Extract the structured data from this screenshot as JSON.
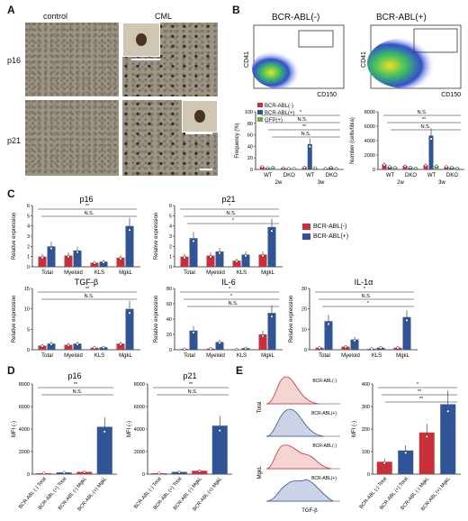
{
  "panels": {
    "A": "A",
    "B": "B",
    "C": "C",
    "D": "D",
    "E": "E"
  },
  "panelA": {
    "col_control": "control",
    "col_cml": "CML",
    "row_p16": "p16",
    "row_p21": "p21"
  },
  "panelB": {
    "flow_left_title": "BCR-ABL(-)",
    "flow_right_title": "BCR-ABL(+)",
    "cd41": "CD41",
    "cd150": "CD150",
    "legend": [
      "BCR-ABL(-)",
      "BCR-ABL(+)",
      "GFP(+)"
    ],
    "colors": {
      "neg": "#c8303a",
      "pos": "#2f5597",
      "gfp": "#6aaa3a"
    }
  },
  "chart_data": [
    {
      "type": "bar",
      "panel": "B-frequency",
      "ylabel": "Frequency (%)",
      "ylim": [
        0,
        100
      ],
      "yticks": [
        0,
        20,
        40,
        60,
        80,
        100
      ],
      "categories": [
        "WT",
        "DKO",
        "WT",
        "DKO"
      ],
      "groups": [
        "2w",
        "3w"
      ],
      "series": [
        {
          "name": "BCR-ABL(-)",
          "values": [
            5,
            3,
            4,
            2
          ]
        },
        {
          "name": "BCR-ABL(+)",
          "values": [
            3,
            2,
            44,
            4
          ]
        },
        {
          "name": "GFP(+)",
          "values": [
            4,
            2,
            3,
            2
          ]
        }
      ],
      "annotations": [
        "*",
        "N.S.",
        "**",
        "N.S."
      ]
    },
    {
      "type": "bar",
      "panel": "B-number",
      "ylabel": "Number (cells/tibia)",
      "ylim": [
        0,
        8000
      ],
      "yticks": [
        0,
        2000,
        4000,
        6000,
        8000
      ],
      "categories": [
        "WT",
        "DKO",
        "WT",
        "DKO"
      ],
      "groups": [
        "2w",
        "3w"
      ],
      "series": [
        {
          "name": "BCR-ABL(-)",
          "values": [
            700,
            500,
            600,
            400
          ]
        },
        {
          "name": "BCR-ABL(+)",
          "values": [
            400,
            300,
            4700,
            300
          ]
        },
        {
          "name": "GFP(+)",
          "values": [
            300,
            200,
            500,
            200
          ]
        }
      ],
      "annotations": [
        "N.S.",
        "**",
        "N.S."
      ]
    },
    {
      "type": "bar",
      "panel": "C",
      "title": "p16",
      "ylabel": "Relative expression",
      "ylim": [
        0,
        6
      ],
      "yticks": [
        0,
        1,
        2,
        3,
        4,
        5,
        6
      ],
      "categories": [
        "Total",
        "Myeloid",
        "KLS",
        "MgkL"
      ],
      "series": [
        {
          "name": "BCR-ABL(-)",
          "values": [
            1,
            1.1,
            0.4,
            0.9
          ]
        },
        {
          "name": "BCR-ABL(+)",
          "values": [
            2.0,
            1.6,
            0.5,
            4.0
          ]
        }
      ],
      "annotations": [
        "**",
        "N.S."
      ]
    },
    {
      "type": "bar",
      "panel": "C",
      "title": "p21",
      "ylabel": "Relative expression",
      "ylim": [
        0,
        6
      ],
      "yticks": [
        0,
        1,
        2,
        3,
        4,
        5,
        6
      ],
      "categories": [
        "Total",
        "Myeloid",
        "KLS",
        "MgkL"
      ],
      "series": [
        {
          "name": "BCR-ABL(-)",
          "values": [
            1,
            1.1,
            0.6,
            1.2
          ]
        },
        {
          "name": "BCR-ABL(+)",
          "values": [
            2.8,
            1.5,
            1.2,
            3.9
          ]
        }
      ],
      "annotations": [
        "*",
        "N.S.",
        "*"
      ]
    },
    {
      "type": "bar",
      "panel": "C",
      "title": "TGF-β",
      "ylabel": "Relative expression",
      "ylim": [
        0,
        15
      ],
      "yticks": [
        0,
        5,
        10,
        15
      ],
      "categories": [
        "Total",
        "Myeloid",
        "KLS",
        "MgkL"
      ],
      "series": [
        {
          "name": "BCR-ABL(-)",
          "values": [
            1,
            1.2,
            0.5,
            1.5
          ]
        },
        {
          "name": "BCR-ABL(+)",
          "values": [
            1.5,
            1.5,
            0.6,
            10
          ]
        }
      ],
      "annotations": [
        "**",
        "N.S."
      ]
    },
    {
      "type": "bar",
      "panel": "C",
      "title": "IL-6",
      "ylabel": "Relative expression",
      "ylim": [
        0,
        80
      ],
      "yticks": [
        0,
        20,
        40,
        60,
        80
      ],
      "categories": [
        "Total",
        "Myeloid",
        "KLS",
        "MgkL"
      ],
      "series": [
        {
          "name": "BCR-ABL(-)",
          "values": [
            1,
            1.5,
            0.5,
            20
          ]
        },
        {
          "name": "BCR-ABL(+)",
          "values": [
            25,
            10,
            2,
            48
          ]
        }
      ],
      "annotations": [
        "*",
        "*",
        "N.S."
      ]
    },
    {
      "type": "bar",
      "panel": "C",
      "title": "IL-1α",
      "ylabel": "Relative expression",
      "ylim": [
        0,
        30
      ],
      "yticks": [
        0,
        10,
        20,
        30
      ],
      "categories": [
        "Total",
        "Myeloid",
        "KLS",
        "MgkL"
      ],
      "series": [
        {
          "name": "BCR-ABL(-)",
          "values": [
            1,
            1.5,
            0.5,
            1
          ]
        },
        {
          "name": "BCR-ABL(+)",
          "values": [
            14,
            5,
            1,
            16
          ]
        }
      ],
      "annotations": [
        "*",
        "N.S.",
        "*"
      ]
    },
    {
      "type": "bar",
      "panel": "D",
      "title": "p16",
      "ylabel": "MFI (-)",
      "ylim": [
        0,
        8000
      ],
      "yticks": [
        0,
        2000,
        4000,
        6000,
        8000
      ],
      "categories": [
        "BCR-ABL (-) Total",
        "BCR-ABL (+) Total",
        "BCR-ABL (-) MgkL",
        "BCR-ABL (+) MgkL"
      ],
      "values": [
        80,
        150,
        200,
        4200
      ],
      "annotations": [
        "**",
        "N.S."
      ]
    },
    {
      "type": "bar",
      "panel": "D",
      "title": "p21",
      "ylabel": "MFI (-)",
      "ylim": [
        0,
        8000
      ],
      "yticks": [
        0,
        2000,
        4000,
        6000,
        8000
      ],
      "categories": [
        "BCR-ABL (-) Total",
        "BCR-ABL (+) Total",
        "BCR-ABL (-) MgkL",
        "BCR-ABL (+) MgkL"
      ],
      "values": [
        80,
        200,
        300,
        4300
      ],
      "annotations": [
        "**",
        "N.S."
      ]
    },
    {
      "type": "bar",
      "panel": "E",
      "ylabel": "MFI (-)",
      "ylim": [
        0,
        400
      ],
      "yticks": [
        0,
        100,
        200,
        300,
        400
      ],
      "categories": [
        "BCR-ABL (-) Total",
        "BCR-ABL (+) Total",
        "BCR-ABL (-) MgkL",
        "BCR-ABL (+) MgkL"
      ],
      "values": [
        55,
        105,
        185,
        310
      ],
      "annotations": [
        "*",
        "**",
        "**"
      ]
    }
  ],
  "panelE": {
    "hist_labels": [
      "BCR-ABL(-)",
      "BCR-ABL(+)",
      "BCR-ABL(-)",
      "BCR-ABL(+)"
    ],
    "row_total": "Total",
    "row_mgkl": "MgkL",
    "xlabel": "TGF-β"
  },
  "legendC": [
    "BCR-ABL(-)",
    "BCR-ABL(+)"
  ],
  "ns": "N.S."
}
